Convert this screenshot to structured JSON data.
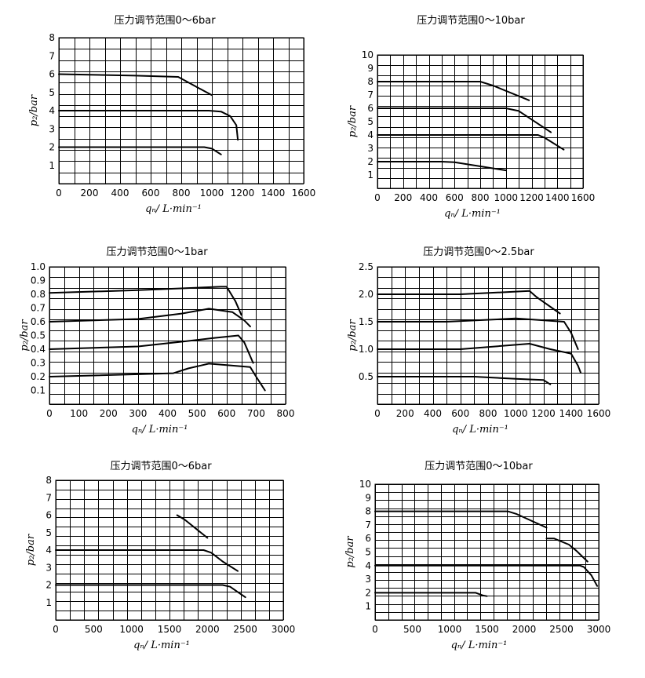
{
  "y_axis_label": "p₂/bar",
  "x_axis_label": "qₙ/ L·min⁻¹",
  "chart_data": [
    {
      "type": "line",
      "title": "压力调节范围0～6bar",
      "xlabel": "qₙ/ L·min⁻¹",
      "ylabel": "p₂/bar",
      "xlim": [
        0,
        1600
      ],
      "ylim": [
        0,
        8
      ],
      "x_ticks": [
        0,
        200,
        400,
        600,
        800,
        1000,
        1200,
        1400,
        1600
      ],
      "x_tick_labels": [
        "0",
        "200",
        "400",
        "600",
        "800",
        "1000",
        "1200",
        "1400",
        "1600"
      ],
      "y_ticks": [
        1,
        2,
        3,
        4,
        5,
        6,
        7,
        8
      ],
      "y_tick_labels": [
        "1",
        "2",
        "3",
        "4",
        "5",
        "6",
        "7",
        "8"
      ],
      "series": [
        {
          "name": "6 bar",
          "points": [
            [
              0,
              6.0
            ],
            [
              500,
              5.92
            ],
            [
              780,
              5.85
            ],
            [
              900,
              5.3
            ],
            [
              1000,
              4.85
            ]
          ]
        },
        {
          "name": "4 bar",
          "points": [
            [
              0,
              4.0
            ],
            [
              980,
              4.0
            ],
            [
              1060,
              3.95
            ],
            [
              1120,
              3.7
            ],
            [
              1160,
              3.2
            ],
            [
              1170,
              2.4
            ]
          ]
        },
        {
          "name": "2 bar",
          "points": [
            [
              0,
              2.0
            ],
            [
              950,
              2.0
            ],
            [
              1000,
              1.92
            ],
            [
              1060,
              1.6
            ]
          ]
        }
      ]
    },
    {
      "type": "line",
      "title": "压力调节范围0～10bar",
      "xlabel": "qₙ/ L·min⁻¹",
      "ylabel": "p₂/bar",
      "xlim": [
        0,
        1600
      ],
      "ylim": [
        0,
        10
      ],
      "x_ticks": [
        0,
        200,
        400,
        600,
        800,
        1000,
        1200,
        1400,
        1600
      ],
      "x_tick_labels": [
        "0",
        "200",
        "400",
        "600",
        "800",
        "1000",
        "1200",
        "1400",
        "1600"
      ],
      "y_ticks": [
        1,
        2,
        3,
        4,
        5,
        6,
        7,
        8,
        9,
        10
      ],
      "y_tick_labels": [
        "1",
        "2",
        "3",
        "4",
        "5",
        "6",
        "7",
        "8",
        "9",
        "10"
      ],
      "series": [
        {
          "name": "8 bar",
          "points": [
            [
              0,
              8.0
            ],
            [
              800,
              8.0
            ],
            [
              900,
              7.7
            ],
            [
              1180,
              6.6
            ]
          ]
        },
        {
          "name": "6 bar",
          "points": [
            [
              0,
              6.0
            ],
            [
              1000,
              6.0
            ],
            [
              1100,
              5.8
            ],
            [
              1350,
              4.2
            ]
          ]
        },
        {
          "name": "4 bar",
          "points": [
            [
              0,
              4.0
            ],
            [
              1250,
              4.0
            ],
            [
              1300,
              3.8
            ],
            [
              1450,
              2.9
            ]
          ]
        },
        {
          "name": "2 bar",
          "points": [
            [
              0,
              2.0
            ],
            [
              500,
              2.0
            ],
            [
              600,
              1.95
            ],
            [
              1000,
              1.35
            ]
          ]
        }
      ]
    },
    {
      "type": "line",
      "title": "压力调节范围0～1bar",
      "xlabel": "qₙ/ L·min⁻¹",
      "ylabel": "p₂/bar",
      "xlim": [
        0,
        800
      ],
      "ylim": [
        0,
        1.0
      ],
      "x_ticks": [
        0,
        100,
        200,
        300,
        400,
        500,
        600,
        700,
        800
      ],
      "x_tick_labels": [
        "0",
        "100",
        "200",
        "300",
        "400",
        "500",
        "600",
        "700",
        "800"
      ],
      "y_ticks": [
        0.1,
        0.2,
        0.3,
        0.4,
        0.5,
        0.6,
        0.7,
        0.8,
        0.9,
        1.0
      ],
      "y_tick_labels": [
        "0.1",
        "0.2",
        "0.3",
        "0.4",
        "0.5",
        "0.6",
        "0.7",
        "0.8",
        "0.9",
        "1.0"
      ],
      "series": [
        {
          "name": "0.8 bar",
          "points": [
            [
              0,
              0.81
            ],
            [
              300,
              0.83
            ],
            [
              580,
              0.855
            ],
            [
              600,
              0.855
            ],
            [
              630,
              0.75
            ],
            [
              650,
              0.65
            ]
          ]
        },
        {
          "name": "0.6 bar",
          "points": [
            [
              0,
              0.6
            ],
            [
              300,
              0.62
            ],
            [
              450,
              0.66
            ],
            [
              540,
              0.695
            ],
            [
              620,
              0.67
            ],
            [
              660,
              0.61
            ],
            [
              680,
              0.565
            ]
          ]
        },
        {
          "name": "0.4 bar",
          "points": [
            [
              0,
              0.4
            ],
            [
              300,
              0.42
            ],
            [
              450,
              0.455
            ],
            [
              550,
              0.48
            ],
            [
              640,
              0.5
            ],
            [
              660,
              0.45
            ],
            [
              690,
              0.3
            ]
          ]
        },
        {
          "name": "0.2 bar",
          "points": [
            [
              0,
              0.2
            ],
            [
              420,
              0.225
            ],
            [
              470,
              0.26
            ],
            [
              540,
              0.295
            ],
            [
              680,
              0.27
            ],
            [
              700,
              0.2
            ],
            [
              730,
              0.1
            ]
          ]
        }
      ]
    },
    {
      "type": "line",
      "title": "压力调节范围0～2.5bar",
      "xlabel": "qₙ/ L·min⁻¹",
      "ylabel": "p₂/bar",
      "xlim": [
        0,
        1600
      ],
      "ylim": [
        0,
        2.5
      ],
      "x_ticks": [
        0,
        200,
        400,
        600,
        800,
        1000,
        1200,
        1400,
        1600
      ],
      "x_tick_labels": [
        "0",
        "200",
        "400",
        "600",
        "800",
        "1000",
        "1200",
        "1400",
        "1600"
      ],
      "y_ticks": [
        0.5,
        1.0,
        1.5,
        2.0,
        2.5
      ],
      "y_tick_labels": [
        "0.5",
        "1.0",
        "1.5",
        "2.0",
        "2.5"
      ],
      "series": [
        {
          "name": "2.0 bar",
          "points": [
            [
              0,
              2.0
            ],
            [
              600,
              2.0
            ],
            [
              1100,
              2.06
            ],
            [
              1150,
              1.95
            ],
            [
              1320,
              1.65
            ]
          ]
        },
        {
          "name": "1.5 bar",
          "points": [
            [
              0,
              1.5
            ],
            [
              500,
              1.5
            ],
            [
              1000,
              1.56
            ],
            [
              1350,
              1.5
            ],
            [
              1400,
              1.3
            ],
            [
              1450,
              1.0
            ]
          ]
        },
        {
          "name": "1.0 bar",
          "points": [
            [
              0,
              1.0
            ],
            [
              600,
              1.0
            ],
            [
              1100,
              1.1
            ],
            [
              1250,
              1.0
            ],
            [
              1400,
              0.92
            ],
            [
              1450,
              0.7
            ],
            [
              1470,
              0.57
            ]
          ]
        },
        {
          "name": "0.5 bar",
          "points": [
            [
              0,
              0.5
            ],
            [
              700,
              0.5
            ],
            [
              1000,
              0.46
            ],
            [
              1200,
              0.44
            ],
            [
              1250,
              0.36
            ]
          ]
        }
      ]
    },
    {
      "type": "line",
      "title": "压力调节范围0～6bar",
      "xlabel": "qₙ/ L·min⁻¹",
      "ylabel": "p₂/bar",
      "xlim": [
        0,
        3000
      ],
      "ylim": [
        0,
        8
      ],
      "x_ticks": [
        0,
        500,
        1000,
        1500,
        2000,
        2500,
        3000
      ],
      "x_tick_labels": [
        "0",
        "500",
        "1000",
        "1500",
        "2000",
        "2500",
        "3000"
      ],
      "y_ticks": [
        1,
        2,
        3,
        4,
        5,
        6,
        7,
        8
      ],
      "y_tick_labels": [
        "1",
        "2",
        "3",
        "4",
        "5",
        "6",
        "7",
        "8"
      ],
      "series": [
        {
          "name": "6 bar",
          "points": [
            [
              1600,
              6.0
            ],
            [
              1700,
              5.75
            ],
            [
              2000,
              4.7
            ]
          ]
        },
        {
          "name": "4 bar",
          "points": [
            [
              0,
              4.0
            ],
            [
              1950,
              4.0
            ],
            [
              2050,
              3.85
            ],
            [
              2200,
              3.35
            ],
            [
              2400,
              2.8
            ]
          ]
        },
        {
          "name": "2 bar",
          "points": [
            [
              0,
              2.0
            ],
            [
              2200,
              2.0
            ],
            [
              2300,
              1.9
            ],
            [
              2400,
              1.6
            ],
            [
              2500,
              1.3
            ]
          ]
        }
      ]
    },
    {
      "type": "line",
      "title": "压力调节范围0～10bar",
      "xlabel": "qₙ/ L·min⁻¹",
      "ylabel": "p₂/bar",
      "xlim": [
        0,
        3000
      ],
      "ylim": [
        0,
        10
      ],
      "x_ticks": [
        0,
        500,
        1000,
        1500,
        2000,
        2500,
        3000
      ],
      "x_tick_labels": [
        "0",
        "500",
        "1000",
        "1500",
        "2000",
        "2500",
        "3000"
      ],
      "y_ticks": [
        1,
        2,
        3,
        4,
        5,
        6,
        7,
        8,
        9,
        10
      ],
      "y_tick_labels": [
        "1",
        "2",
        "3",
        "4",
        "5",
        "6",
        "7",
        "8",
        "9",
        "10"
      ],
      "series": [
        {
          "name": "8 bar",
          "points": [
            [
              0,
              8.0
            ],
            [
              1780,
              8.0
            ],
            [
              1900,
              7.8
            ],
            [
              2300,
              6.8
            ]
          ]
        },
        {
          "name": "6 bar",
          "points": [
            [
              2300,
              6.0
            ],
            [
              2400,
              6.0
            ],
            [
              2600,
              5.55
            ],
            [
              2700,
              5.1
            ],
            [
              2850,
              4.3
            ]
          ]
        },
        {
          "name": "4 bar",
          "points": [
            [
              0,
              4.0
            ],
            [
              2750,
              4.0
            ],
            [
              2800,
              3.9
            ],
            [
              2900,
              3.3
            ],
            [
              2980,
              2.5
            ]
          ]
        },
        {
          "name": "2 bar",
          "points": [
            [
              0,
              2.0
            ],
            [
              1350,
              2.0
            ],
            [
              1450,
              1.8
            ],
            [
              1500,
              1.75
            ]
          ]
        }
      ]
    }
  ]
}
